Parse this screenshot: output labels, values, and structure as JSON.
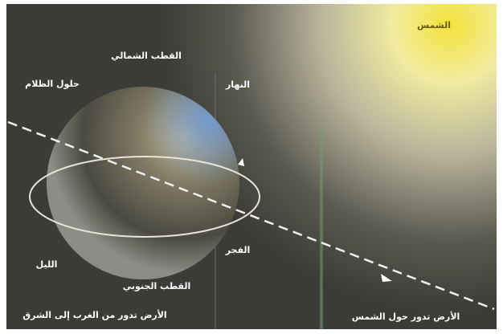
{
  "labels": {
    "sun": "الشمس",
    "north_pole": "القطب الشمالي",
    "nightfall": "حلول الظلام",
    "day": "النهار",
    "dawn": "الفجر",
    "night": "الليل",
    "south_pole": "القطب الجنوبي",
    "rotation": "الأرض تدور من الغرب إلى الشرق",
    "revolution": "الأرض تدور حول الشمس"
  }
}
